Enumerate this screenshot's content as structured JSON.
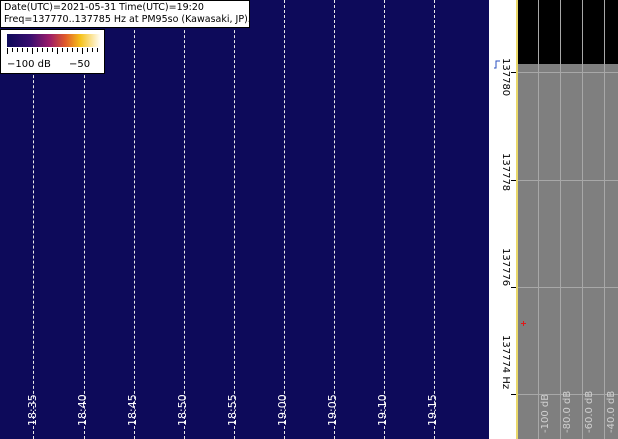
{
  "info": {
    "line1": "Date(UTC)=2021-05-31 Time(UTC)=19:20",
    "line2": "Freq=137770..137785 Hz at PM95so (Kawasaki, JP)."
  },
  "scale": {
    "low_label": "−100 dB",
    "high_label": "−50",
    "colors": [
      "#0d0a5a",
      "#3a0f70",
      "#9b1c6a",
      "#e05a2a",
      "#f6c21a",
      "#ffffff"
    ]
  },
  "time_labels": [
    "18:35",
    "18:40",
    "18:45",
    "18:50",
    "18:55",
    "19:00",
    "19:05",
    "19:10",
    "19:15"
  ],
  "freq_labels": [
    "137780",
    "137778",
    "137776",
    "137774 Hz"
  ],
  "spectrum_labels": [
    "-100 dB",
    "-80.0 dB",
    "-60.0 dB",
    "-40.0 dB"
  ],
  "colors": {
    "waterfall_bg": "#0d0a5a",
    "grid_line": "#e8e8e8",
    "spectrum_bg": "#7f7f7f",
    "spectrum_top": "#000000",
    "marker": "#e01818",
    "axis_accent": "#e9d86a"
  }
}
